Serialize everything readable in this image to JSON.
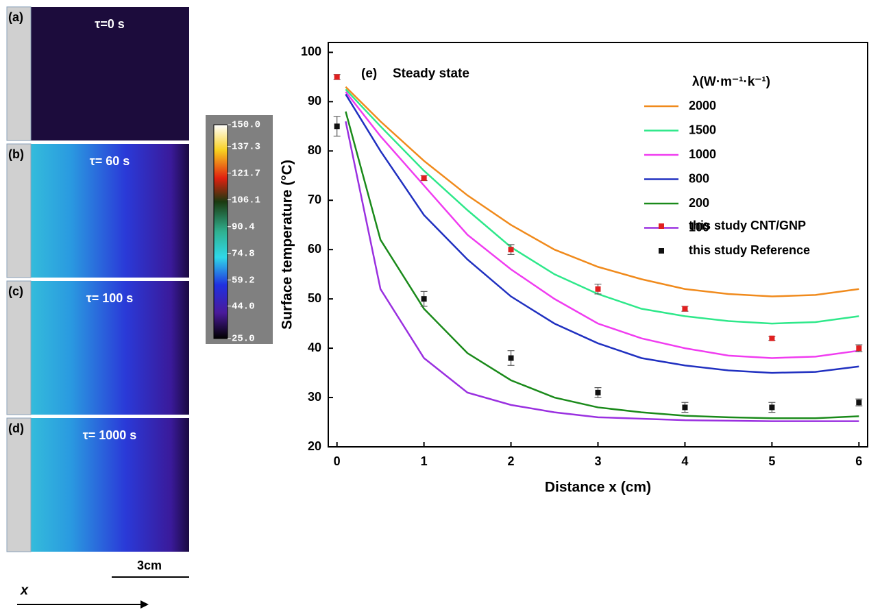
{
  "panels": [
    {
      "label": "(a)",
      "time": "τ=0 s"
    },
    {
      "label": "(b)",
      "time": "τ= 60 s"
    },
    {
      "label": "(c)",
      "time": "τ= 100 s"
    },
    {
      "label": "(d)",
      "time": "τ= 1000 s"
    }
  ],
  "colorbar": {
    "lim": [
      25,
      150
    ],
    "ticks": [
      {
        "value": 150,
        "label": "150.0"
      },
      {
        "value": 137.3,
        "label": "137.3"
      },
      {
        "value": 121.7,
        "label": "121.7"
      },
      {
        "value": 106.1,
        "label": "106.1"
      },
      {
        "value": 90.4,
        "label": "90.4"
      },
      {
        "value": 74.8,
        "label": "74.8"
      },
      {
        "value": 59.2,
        "label": "59.2"
      },
      {
        "value": 44,
        "label": "44.0"
      },
      {
        "value": 25,
        "label": "25.0"
      }
    ]
  },
  "scale_bar": "3cm",
  "direction_label": "x",
  "chart_data": {
    "type": "line",
    "panel_label": "(e)",
    "annotation": "Steady state",
    "x_label": "Distance x (cm)",
    "y_label": "Surface temperature (°C)",
    "legend_title": "λ(W·m⁻¹·k⁻¹)",
    "xlim": [
      -0.1,
      6.1
    ],
    "ylim": [
      20,
      102
    ],
    "xticks": [
      0,
      1,
      2,
      3,
      4,
      5,
      6
    ],
    "yticks": [
      20,
      30,
      40,
      50,
      60,
      70,
      80,
      90,
      100
    ],
    "x": [
      0.1,
      0.5,
      1,
      1.5,
      2,
      2.5,
      3,
      3.5,
      4,
      4.5,
      5,
      5.5,
      6
    ],
    "series": [
      {
        "name": "2000",
        "color": "#f08a1c",
        "values": [
          93,
          86,
          78,
          71,
          65,
          60,
          56.5,
          54,
          52,
          51,
          50.5,
          50.8,
          52
        ]
      },
      {
        "name": "1500",
        "color": "#2ee88a",
        "values": [
          92.5,
          85,
          76,
          68,
          60.5,
          55,
          51,
          48,
          46.5,
          45.5,
          45,
          45.3,
          46.5
        ]
      },
      {
        "name": "1000",
        "color": "#f03cf0",
        "values": [
          92,
          83,
          73,
          63,
          56,
          50,
          45,
          42,
          40,
          38.5,
          38,
          38.3,
          39.5
        ]
      },
      {
        "name": "800",
        "color": "#2030c0",
        "values": [
          91.5,
          80,
          67,
          58,
          50.5,
          45,
          41,
          38,
          36.5,
          35.5,
          35,
          35.2,
          36.3
        ]
      },
      {
        "name": "200",
        "color": "#1a8a1a",
        "values": [
          88,
          62,
          48,
          39,
          33.5,
          30,
          28,
          27,
          26.3,
          26,
          25.8,
          25.8,
          26.2
        ]
      },
      {
        "name": "100",
        "color": "#9a30e0",
        "values": [
          86,
          52,
          38,
          31,
          28.5,
          27,
          26,
          25.7,
          25.4,
          25.3,
          25.2,
          25.2,
          25.2
        ]
      }
    ],
    "markers": [
      {
        "name": "this study CNT/GNP",
        "color": "#e02020",
        "x": [
          0,
          1,
          2,
          3,
          4,
          5,
          6
        ],
        "values": [
          95,
          74.5,
          60,
          52,
          48,
          42,
          40
        ],
        "errors": [
          0.5,
          0.5,
          1,
          1,
          0.5,
          0.4,
          0.7
        ]
      },
      {
        "name": "this study Reference",
        "color": "#111111",
        "x": [
          0,
          1,
          2,
          3,
          4,
          5,
          6
        ],
        "values": [
          85,
          50,
          38,
          31,
          28,
          28,
          29
        ],
        "errors": [
          2,
          1.5,
          1.5,
          1,
          1,
          1,
          0.7
        ]
      }
    ]
  }
}
